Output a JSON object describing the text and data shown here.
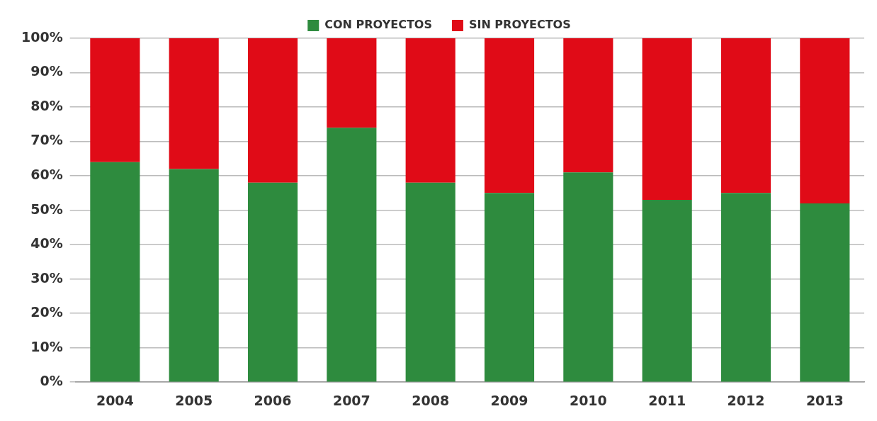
{
  "chart_data": {
    "type": "bar",
    "stacked": true,
    "categories": [
      "2004",
      "2005",
      "2006",
      "2007",
      "2008",
      "2009",
      "2010",
      "2011",
      "2012",
      "2013"
    ],
    "series": [
      {
        "name": "CON PROYECTOS",
        "color": "#2e8b3e",
        "values": [
          64,
          62,
          58,
          74,
          58,
          55,
          61,
          53,
          55,
          52
        ]
      },
      {
        "name": "SIN PROYECTOS",
        "color": "#e00b17",
        "values": [
          36,
          38,
          42,
          26,
          42,
          45,
          39,
          47,
          45,
          48
        ]
      }
    ],
    "ylim": [
      0,
      100
    ],
    "yticks": [
      {
        "value": 0,
        "label": "0%"
      },
      {
        "value": 10,
        "label": "10%"
      },
      {
        "value": 20,
        "label": "20%"
      },
      {
        "value": 30,
        "label": "30%"
      },
      {
        "value": 40,
        "label": "40%"
      },
      {
        "value": 50,
        "label": "50%"
      },
      {
        "value": 60,
        "label": "60%"
      },
      {
        "value": 70,
        "label": "70%"
      },
      {
        "value": 80,
        "label": "80%"
      },
      {
        "value": 90,
        "label": "90%"
      },
      {
        "value": 100,
        "label": "100%"
      }
    ],
    "grid": "y",
    "legend": "top"
  }
}
